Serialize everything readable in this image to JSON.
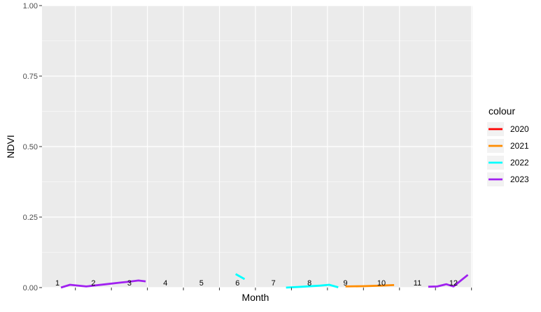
{
  "chart_data": {
    "type": "line",
    "xlabel": "Month",
    "ylabel": "NDVI",
    "ylim": [
      0,
      1
    ],
    "y_ticks": [
      "0.00",
      "0.25",
      "0.50",
      "0.75",
      "1.00"
    ],
    "y_tick_values": [
      0,
      0.25,
      0.5,
      0.75,
      1
    ],
    "categories": [
      "1",
      "2",
      "3",
      "4",
      "5",
      "6",
      "7",
      "8",
      "9",
      "10",
      "11",
      "12"
    ],
    "grid": true,
    "legend": {
      "title": "colour",
      "placement": "right"
    },
    "series": [
      {
        "name": "2020",
        "color": "#ff0000",
        "segments": []
      },
      {
        "name": "2021",
        "color": "#ff8c00",
        "segments": [
          [
            [
              9.0,
              0.004
            ],
            [
              9.5,
              0.005
            ],
            [
              10.0,
              0.007
            ],
            [
              10.35,
              0.009
            ]
          ]
        ]
      },
      {
        "name": "2022",
        "color": "#00ffff",
        "segments": [
          [
            [
              5.95,
              0.048
            ],
            [
              6.2,
              0.03
            ]
          ],
          [
            [
              7.35,
              0.0
            ],
            [
              7.8,
              0.003
            ],
            [
              8.3,
              0.007
            ],
            [
              8.55,
              0.01
            ],
            [
              8.8,
              0.001
            ]
          ]
        ]
      },
      {
        "name": "2023",
        "color": "#a020f0",
        "segments": [
          [
            [
              1.1,
              0.0
            ],
            [
              1.35,
              0.01
            ],
            [
              1.8,
              0.004
            ],
            [
              2.35,
              0.012
            ],
            [
              2.7,
              0.017
            ],
            [
              3.0,
              0.021
            ],
            [
              3.25,
              0.025
            ],
            [
              3.45,
              0.022
            ]
          ],
          [
            [
              11.3,
              0.003
            ],
            [
              11.55,
              0.004
            ],
            [
              11.8,
              0.012
            ],
            [
              12.0,
              0.004
            ],
            [
              12.4,
              0.045
            ]
          ]
        ]
      }
    ]
  }
}
